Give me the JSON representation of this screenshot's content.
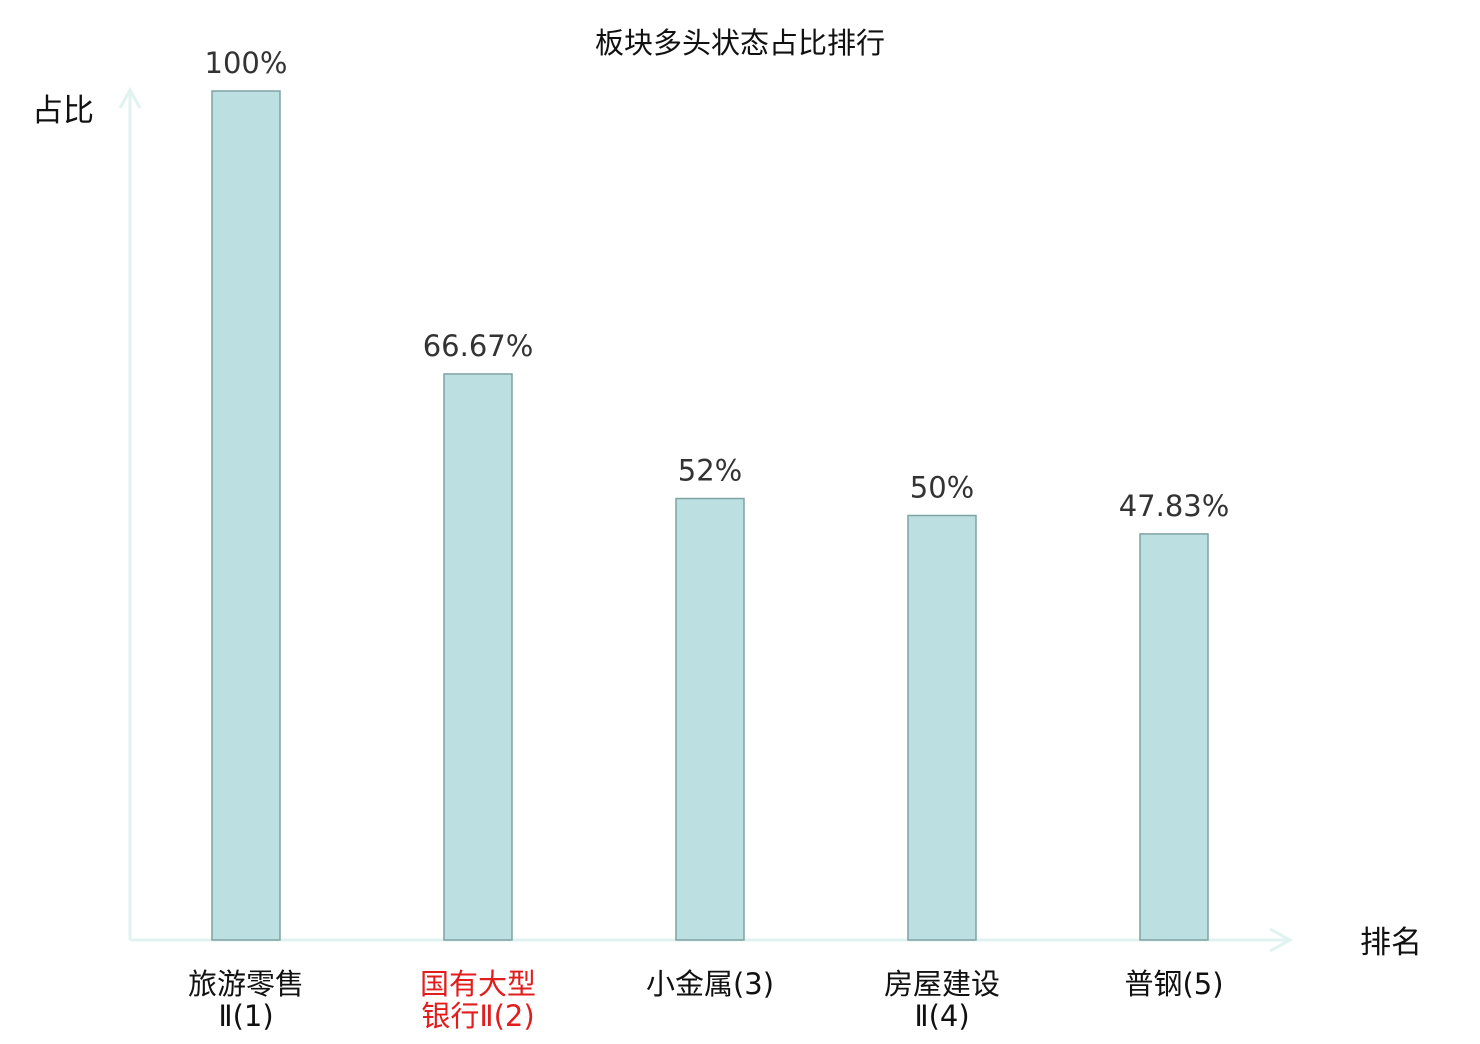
{
  "chart_data": {
    "type": "bar",
    "title": "板块多头状态占比排行",
    "ylabel": "占比",
    "xlabel": "排名",
    "ylim": [
      0,
      100
    ],
    "grid": false,
    "legend": "none",
    "categories": [
      [
        "旅游零售",
        "Ⅱ(1)"
      ],
      [
        "国有大型",
        "银行Ⅱ(2)"
      ],
      [
        "小金属(3)"
      ],
      [
        "房屋建设",
        "Ⅱ(4)"
      ],
      [
        "普钢(5)"
      ]
    ],
    "values": [
      100,
      66.67,
      52,
      50,
      47.83
    ],
    "value_labels": [
      "100%",
      "66.67%",
      "52%",
      "50%",
      "47.83%"
    ],
    "highlight_index": 1
  },
  "colors": {
    "bar_fill": "#bce0e1",
    "bar_stroke": "#7fa3a4",
    "axis": "#e0f3f1",
    "label_text": "#333333",
    "title_text": "#111111",
    "highlight_text": "#e11d1d"
  }
}
